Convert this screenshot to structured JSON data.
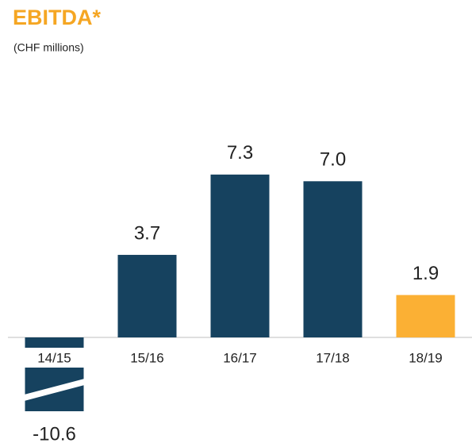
{
  "chart_data": {
    "type": "bar",
    "title": "EBITDA*",
    "subtitle": "(CHF millions)",
    "categories": [
      "14/15",
      "15/16",
      "16/17",
      "17/18",
      "18/19"
    ],
    "series": [
      {
        "name": null,
        "values": [
          -10.6,
          3.7,
          7.3,
          7.0,
          1.9
        ],
        "value_labels": [
          "-10.6",
          "3.7",
          "7.3",
          "7.0",
          "1.9"
        ],
        "colors": [
          "#16425f",
          "#16425f",
          "#16425f",
          "#16425f",
          "#fbb034"
        ]
      }
    ]
  }
}
